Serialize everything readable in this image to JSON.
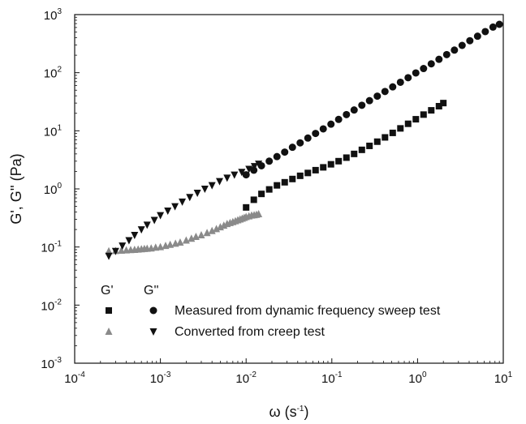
{
  "chart_data": {
    "type": "scatter",
    "title": "",
    "xlabel": {
      "base": "ω (s",
      "sup": "-1",
      "tail": ")"
    },
    "ylabel": "G', G'' (Pa)",
    "xscale": "log",
    "yscale": "log",
    "xlim": [
      0.0001,
      10
    ],
    "ylim": [
      0.001,
      1000
    ],
    "x_ticks": [
      {
        "value": 0.0001,
        "base": "10",
        "exp": "-4"
      },
      {
        "value": 0.001,
        "base": "10",
        "exp": "-3"
      },
      {
        "value": 0.01,
        "base": "10",
        "exp": "-2"
      },
      {
        "value": 0.1,
        "base": "10",
        "exp": "-1"
      },
      {
        "value": 1,
        "base": "10",
        "exp": "0"
      },
      {
        "value": 10,
        "base": "10",
        "exp": "1"
      }
    ],
    "y_ticks": [
      {
        "value": 0.001,
        "base": "10",
        "exp": "-3"
      },
      {
        "value": 0.01,
        "base": "10",
        "exp": "-2"
      },
      {
        "value": 0.1,
        "base": "10",
        "exp": "-1"
      },
      {
        "value": 1,
        "base": "10",
        "exp": "0"
      },
      {
        "value": 10,
        "base": "10",
        "exp": "1"
      },
      {
        "value": 100,
        "base": "10",
        "exp": "2"
      },
      {
        "value": 1000,
        "base": "10",
        "exp": "3"
      }
    ],
    "grid": false,
    "legend": {
      "position": "bottom-left",
      "col_headers": [
        "G'",
        "G''"
      ],
      "rows": [
        {
          "label": "Measured from dynamic frequency sweep test"
        },
        {
          "label": "Converted from creep test"
        }
      ]
    },
    "series": [
      {
        "role": "G'",
        "marker": "square",
        "color": "#111111",
        "x": [
          0.01,
          0.0123,
          0.0151,
          0.0186,
          0.0229,
          0.0282,
          0.0347,
          0.0427,
          0.0525,
          0.0646,
          0.0794,
          0.0977,
          0.12,
          0.148,
          0.182,
          0.224,
          0.275,
          0.339,
          0.417,
          0.513,
          0.631,
          0.776,
          0.955,
          1.175,
          1.445,
          1.778,
          2.0
        ],
        "y": [
          0.48,
          0.65,
          0.82,
          0.98,
          1.15,
          1.3,
          1.48,
          1.68,
          1.88,
          2.1,
          2.35,
          2.65,
          3.0,
          3.45,
          4.0,
          4.7,
          5.5,
          6.5,
          7.7,
          9.2,
          11.0,
          13.2,
          15.8,
          19.0,
          22.5,
          26.5,
          30.0
        ]
      },
      {
        "role": "G''",
        "marker": "circle",
        "color": "#111111",
        "x": [
          0.01,
          0.0123,
          0.0151,
          0.0186,
          0.0229,
          0.0282,
          0.0347,
          0.0427,
          0.0525,
          0.0646,
          0.0794,
          0.0977,
          0.12,
          0.148,
          0.182,
          0.224,
          0.275,
          0.339,
          0.417,
          0.513,
          0.631,
          0.776,
          0.955,
          1.175,
          1.445,
          1.778,
          2.188,
          2.692,
          3.311,
          4.074,
          5.012,
          6.166,
          7.586,
          9.0
        ],
        "y": [
          1.75,
          2.1,
          2.5,
          3.0,
          3.6,
          4.3,
          5.2,
          6.2,
          7.5,
          9.0,
          10.8,
          13.0,
          15.7,
          19.0,
          22.8,
          27.5,
          33.0,
          39.5,
          47.5,
          57.0,
          68.5,
          82.0,
          99.0,
          118.0,
          142.0,
          170.0,
          205.0,
          245.0,
          295.0,
          355.0,
          425.0,
          510.0,
          610.0,
          680.0
        ]
      },
      {
        "role": "G'",
        "marker": "triangle-up",
        "color": "#8a8a8a",
        "x": [
          0.00025,
          0.0003,
          0.00035,
          0.0004,
          0.00045,
          0.0005,
          0.00055,
          0.0006,
          0.00065,
          0.0007,
          0.00078,
          0.00088,
          0.001,
          0.00115,
          0.0013,
          0.0015,
          0.0017,
          0.002,
          0.0023,
          0.0026,
          0.003,
          0.0035,
          0.004,
          0.0045,
          0.005,
          0.0055,
          0.006,
          0.0065,
          0.007,
          0.0075,
          0.008,
          0.0085,
          0.009,
          0.0095,
          0.01,
          0.0108,
          0.0116,
          0.0124,
          0.0132,
          0.014
        ],
        "y": [
          0.085,
          0.086,
          0.087,
          0.088,
          0.089,
          0.09,
          0.091,
          0.092,
          0.093,
          0.094,
          0.095,
          0.098,
          0.1,
          0.105,
          0.11,
          0.115,
          0.12,
          0.13,
          0.14,
          0.15,
          0.16,
          0.175,
          0.19,
          0.205,
          0.22,
          0.235,
          0.25,
          0.26,
          0.27,
          0.28,
          0.29,
          0.3,
          0.31,
          0.32,
          0.33,
          0.34,
          0.35,
          0.355,
          0.36,
          0.37
        ]
      },
      {
        "role": "G''",
        "marker": "triangle-down",
        "color": "#111111",
        "x": [
          0.00025,
          0.0003,
          0.00036,
          0.00043,
          0.0005,
          0.0006,
          0.0007,
          0.00085,
          0.001,
          0.00122,
          0.00148,
          0.0018,
          0.0022,
          0.0027,
          0.0033,
          0.004,
          0.0049,
          0.006,
          0.0073,
          0.0089,
          0.0108,
          0.0125,
          0.014
        ],
        "y": [
          0.07,
          0.085,
          0.105,
          0.13,
          0.16,
          0.2,
          0.24,
          0.29,
          0.35,
          0.42,
          0.5,
          0.6,
          0.72,
          0.85,
          1.0,
          1.15,
          1.35,
          1.55,
          1.75,
          1.95,
          2.2,
          2.45,
          2.7
        ]
      }
    ]
  }
}
